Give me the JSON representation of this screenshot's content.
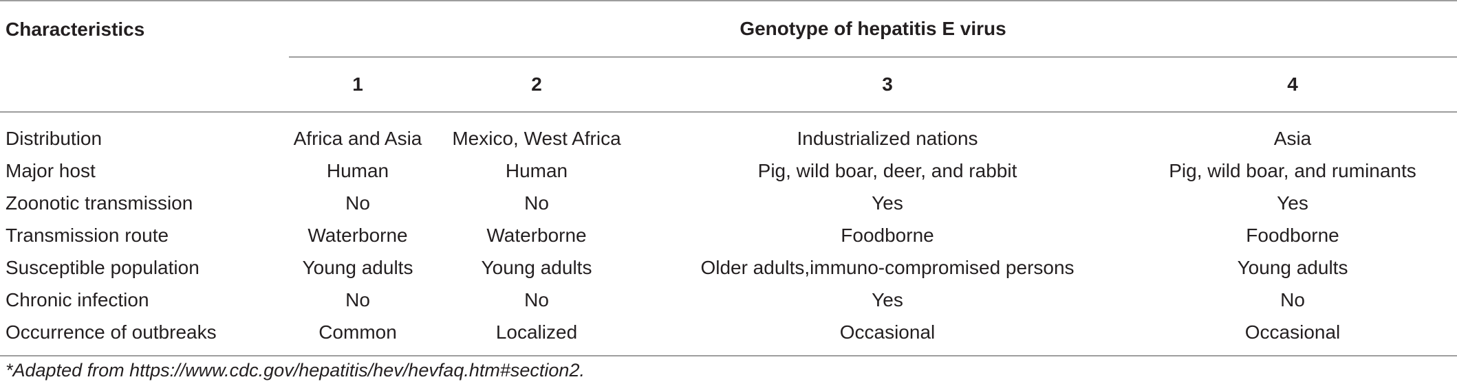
{
  "table": {
    "characteristics_header": "Characteristics",
    "group_header": "Genotype of hepatitis E virus",
    "genotypes": [
      "1",
      "2",
      "3",
      "4"
    ],
    "rows": [
      {
        "label": "Distribution",
        "values": [
          "Africa and Asia",
          "Mexico, West Africa",
          "Industrialized nations",
          "Asia"
        ]
      },
      {
        "label": "Major host",
        "values": [
          "Human",
          "Human",
          "Pig, wild boar, deer, and rabbit",
          "Pig, wild boar, and ruminants"
        ]
      },
      {
        "label": "Zoonotic transmission",
        "values": [
          "No",
          "No",
          "Yes",
          "Yes"
        ]
      },
      {
        "label": "Transmission route",
        "values": [
          "Waterborne",
          "Waterborne",
          "Foodborne",
          "Foodborne"
        ]
      },
      {
        "label": "Susceptible population",
        "values": [
          "Young adults",
          "Young adults",
          "Older adults,immuno-compromised persons",
          "Young adults"
        ]
      },
      {
        "label": "Chronic infection",
        "values": [
          "No",
          "No",
          "Yes",
          "No"
        ]
      },
      {
        "label": "Occurrence of outbreaks",
        "values": [
          "Common",
          "Localized",
          "Occasional",
          "Occasional"
        ]
      }
    ]
  },
  "footnote": "*Adapted from https://www.cdc.gov/hepatitis/hev/hevfaq.htm#section2."
}
